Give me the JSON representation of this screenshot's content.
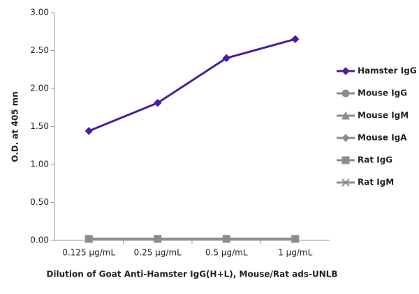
{
  "chart_data": {
    "type": "line",
    "categories": [
      "0.125 µg/mL",
      "0.25 µg/mL",
      "0.5 µg/mL",
      "1 µg/mL"
    ],
    "series": [
      {
        "name": "Hamster IgG",
        "color": "#4b1c9e",
        "marker": "diamond",
        "values": [
          1.44,
          1.81,
          2.4,
          2.65
        ]
      },
      {
        "name": "Mouse IgG",
        "color": "#8c8c8c",
        "marker": "circle",
        "values": [
          0.02,
          0.02,
          0.02,
          0.02
        ]
      },
      {
        "name": "Mouse IgM",
        "color": "#8c8c8c",
        "marker": "triangle",
        "values": [
          0.02,
          0.02,
          0.02,
          0.02
        ]
      },
      {
        "name": "Mouse IgA",
        "color": "#8c8c8c",
        "marker": "diamond",
        "values": [
          0.02,
          0.02,
          0.02,
          0.02
        ]
      },
      {
        "name": "Rat IgG",
        "color": "#8c8c8c",
        "marker": "square",
        "values": [
          0.02,
          0.02,
          0.02,
          0.02
        ]
      },
      {
        "name": "Rat IgM",
        "color": "#8c8c8c",
        "marker": "x",
        "values": [
          0.02,
          0.02,
          0.02,
          0.02
        ]
      }
    ],
    "ylim": [
      0,
      3
    ],
    "yticks": [
      {
        "value": 0,
        "label": "0.00"
      },
      {
        "value": 0.5,
        "label": "0.50"
      },
      {
        "value": 1,
        "label": "1.00"
      },
      {
        "value": 1.5,
        "label": "1.50"
      },
      {
        "value": 2,
        "label": "2.00"
      },
      {
        "value": 2.5,
        "label": "2.50"
      },
      {
        "value": 3,
        "label": "3.00"
      }
    ],
    "y_label": "O.D. at 405 mn",
    "x_label": "Dilution of Goat Anti-Hamster IgG(H+L), Mouse/Rat ads-UNLB",
    "legend": "right"
  }
}
